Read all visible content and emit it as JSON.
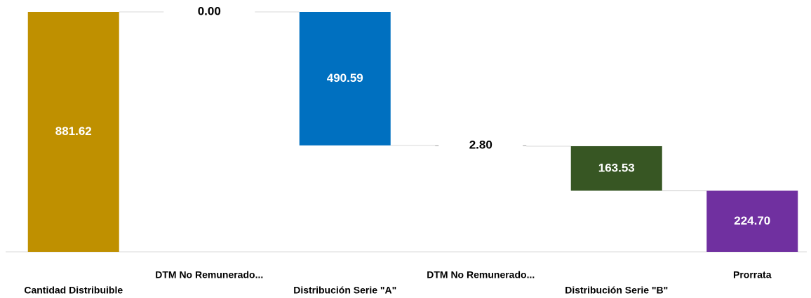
{
  "chart_data": {
    "type": "waterfall",
    "categories": [
      "Cantidad Distribuible",
      "DTM No Remunerado...",
      "Distribución Serie \"A\"",
      "DTM No Remunerado...",
      "Distribución Serie \"B\"",
      "Prorrata"
    ],
    "values": [
      881.62,
      0,
      490.59,
      2.8,
      163.53,
      224.7
    ],
    "value_labels": [
      "881.62",
      "0.00",
      "490.59",
      "2.80",
      "163.53",
      "224.70"
    ],
    "colors": [
      "#bf9000",
      "#a5a5a5",
      "#0070c0",
      "#a5a5a5",
      "#375623",
      "#7030a0"
    ]
  }
}
